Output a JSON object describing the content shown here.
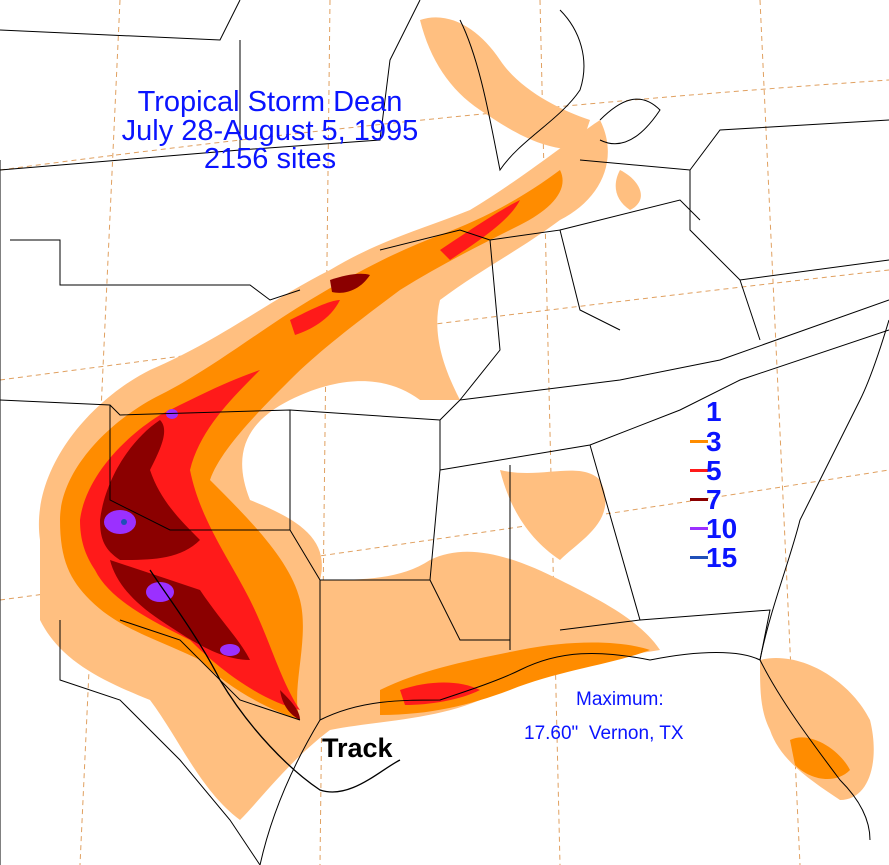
{
  "title": {
    "line1": "Tropical Storm Dean",
    "line2": "July 28-August 5, 1995",
    "line3": "2156 sites"
  },
  "legend": [
    {
      "value": "1",
      "color": "#ffbf80"
    },
    {
      "value": "3",
      "color": "#ff8c00"
    },
    {
      "value": "5",
      "color": "#ff1a1a"
    },
    {
      "value": "7",
      "color": "#8b0000"
    },
    {
      "value": "10",
      "color": "#9b30ff"
    },
    {
      "value": "15",
      "color": "#1f4fb8"
    }
  ],
  "maximum": {
    "label": "Maximum:",
    "value": "17.60\"  Vernon, TX"
  },
  "track_label": "Track",
  "colors": {
    "text": "#0a14ff",
    "background": "#ffffff",
    "boundaries": "#000000",
    "graticule": "#e0a060"
  }
}
